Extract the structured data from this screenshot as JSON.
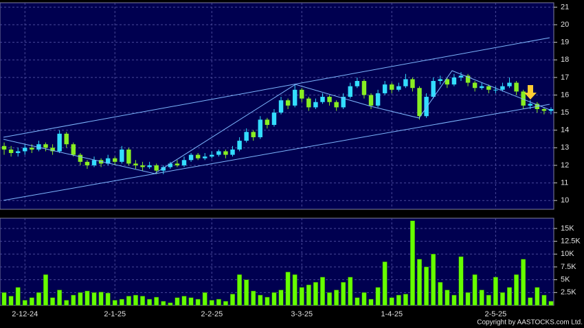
{
  "chart_data": [
    {
      "type": "candlestick",
      "categories": [
        null,
        null,
        null,
        "2-12-24",
        null,
        null,
        null,
        null,
        null,
        null,
        null,
        null,
        null,
        null,
        null,
        null,
        "2-1-25",
        null,
        null,
        null,
        null,
        null,
        null,
        null,
        null,
        null,
        null,
        null,
        null,
        null,
        "2-2-25",
        null,
        null,
        null,
        null,
        null,
        null,
        null,
        null,
        null,
        null,
        null,
        null,
        "3-3-25",
        null,
        null,
        null,
        null,
        null,
        null,
        null,
        null,
        null,
        null,
        null,
        null,
        "1-4-25",
        null,
        null,
        null,
        null,
        null,
        null,
        null,
        null,
        null,
        null,
        null,
        null,
        null,
        null,
        "2-5-25",
        null,
        null,
        null,
        null,
        null,
        null,
        null,
        null
      ],
      "open": [
        13.1,
        12.9,
        12.7,
        12.8,
        13.0,
        12.9,
        13.2,
        13.0,
        12.8,
        13.8,
        13.2,
        12.6,
        12.2,
        12.0,
        12.3,
        12.1,
        12.4,
        12.2,
        12.9,
        12.1,
        12.0,
        11.9,
        12.0,
        11.7,
        11.9,
        12.1,
        12.0,
        12.3,
        12.6,
        12.4,
        12.5,
        12.6,
        12.8,
        12.6,
        12.9,
        13.4,
        13.9,
        13.6,
        14.6,
        14.3,
        15.0,
        15.7,
        15.4,
        16.3,
        15.8,
        15.3,
        15.6,
        15.9,
        15.6,
        15.3,
        15.9,
        16.5,
        16.8,
        16.0,
        15.4,
        16.1,
        16.6,
        16.3,
        16.5,
        16.9,
        16.4,
        14.8,
        15.9,
        16.8,
        16.9,
        16.6,
        17.0,
        17.1,
        16.7,
        16.4,
        16.5,
        16.3,
        16.3,
        16.5,
        16.7,
        16.2,
        15.4,
        15.5,
        15.2,
        15.1
      ],
      "high": [
        13.3,
        13.1,
        13.0,
        13.2,
        13.2,
        13.4,
        13.3,
        13.2,
        14.0,
        13.9,
        13.3,
        12.7,
        12.3,
        12.5,
        12.4,
        12.6,
        12.5,
        13.1,
        13.0,
        12.3,
        12.2,
        12.2,
        12.1,
        12.0,
        12.2,
        12.3,
        12.5,
        12.7,
        12.7,
        12.7,
        12.8,
        12.9,
        12.9,
        13.1,
        13.6,
        14.1,
        14.0,
        14.8,
        14.7,
        15.2,
        15.9,
        15.8,
        16.6,
        16.4,
        15.9,
        15.8,
        16.1,
        16.0,
        15.7,
        16.1,
        16.7,
        17.0,
        16.9,
        16.1,
        16.3,
        16.8,
        16.7,
        16.7,
        17.2,
        17.0,
        16.5,
        16.1,
        17.0,
        17.1,
        17.0,
        17.2,
        17.3,
        17.2,
        16.8,
        16.7,
        16.6,
        16.5,
        16.7,
        17.0,
        16.8,
        16.3,
        15.7,
        15.6,
        15.3,
        15.3
      ],
      "low": [
        12.6,
        12.5,
        12.5,
        12.6,
        12.7,
        12.8,
        12.8,
        12.6,
        12.7,
        13.0,
        12.5,
        12.0,
        11.8,
        11.9,
        11.9,
        12.0,
        12.0,
        12.1,
        12.0,
        11.8,
        11.7,
        11.8,
        11.5,
        11.5,
        11.8,
        11.9,
        11.9,
        12.2,
        12.3,
        12.3,
        12.4,
        12.5,
        12.4,
        12.5,
        12.8,
        13.3,
        13.4,
        13.5,
        14.1,
        14.2,
        14.9,
        15.2,
        15.3,
        15.6,
        15.1,
        15.2,
        15.5,
        15.4,
        15.1,
        15.2,
        15.8,
        16.4,
        15.8,
        15.2,
        15.3,
        16.0,
        16.1,
        16.2,
        16.4,
        16.2,
        14.6,
        14.7,
        15.8,
        16.6,
        16.4,
        16.5,
        16.8,
        16.5,
        16.2,
        16.3,
        16.1,
        16.1,
        16.2,
        16.4,
        16.0,
        15.2,
        15.2,
        15.0,
        14.9,
        14.9
      ],
      "close": [
        12.9,
        12.7,
        12.8,
        13.0,
        12.9,
        13.2,
        13.0,
        12.8,
        13.8,
        13.2,
        12.6,
        12.2,
        12.0,
        12.3,
        12.1,
        12.4,
        12.2,
        12.9,
        12.1,
        12.0,
        11.9,
        12.0,
        11.7,
        11.9,
        12.1,
        12.0,
        12.3,
        12.6,
        12.4,
        12.5,
        12.6,
        12.8,
        12.6,
        12.9,
        13.4,
        13.9,
        13.6,
        14.6,
        14.3,
        15.0,
        15.7,
        15.4,
        16.3,
        15.8,
        15.3,
        15.6,
        15.9,
        15.6,
        15.3,
        15.9,
        16.5,
        16.8,
        16.0,
        15.4,
        16.1,
        16.6,
        16.3,
        16.5,
        16.9,
        16.4,
        14.8,
        15.9,
        16.8,
        16.9,
        16.6,
        17.0,
        17.1,
        16.7,
        16.4,
        16.5,
        16.3,
        16.3,
        16.5,
        16.7,
        16.2,
        15.4,
        15.5,
        15.2,
        15.1,
        15.2
      ],
      "up_color": "#33ddff",
      "down_color": "#88ee22",
      "ylim": [
        9.5,
        21.25
      ],
      "yticks": [
        10,
        11,
        12,
        13,
        14,
        15,
        16,
        17,
        18,
        19,
        20,
        21
      ],
      "grid": true
    },
    {
      "type": "bar",
      "values": [
        2500,
        1800,
        3500,
        1000,
        1500,
        2500,
        6000,
        1500,
        3000,
        1000,
        2000,
        2500,
        2800,
        2500,
        2600,
        2400,
        1000,
        1200,
        1800,
        2000,
        1800,
        1200,
        1600,
        800,
        500,
        1500,
        1800,
        1500,
        1200,
        2500,
        1000,
        1200,
        800,
        2200,
        6000,
        5000,
        2800,
        2000,
        1600,
        2500,
        3000,
        6500,
        6000,
        3500,
        4000,
        4500,
        5500,
        2500,
        3000,
        4500,
        5500,
        1500,
        2500,
        1200,
        3500,
        8500,
        1500,
        2000,
        2200,
        16500,
        9000,
        7500,
        10000,
        4500,
        3000,
        2000,
        9500,
        2500,
        6000,
        3000,
        2000,
        5500,
        2500,
        3500,
        6000,
        9000,
        1500,
        3500,
        2000,
        800
      ],
      "color": "#66ff00",
      "ylim": [
        0,
        17000
      ],
      "yticks": [
        {
          "value": 2500,
          "label": "2.5K"
        },
        {
          "value": 5000,
          "label": "5K"
        },
        {
          "value": 7500,
          "label": "7.5K"
        },
        {
          "value": 10000,
          "label": "10K"
        },
        {
          "value": 12500,
          "label": "12.5K"
        },
        {
          "value": 15000,
          "label": "15K"
        }
      ],
      "grid": true
    }
  ],
  "copyright": "Copyright by AASTOCKS.com Ltd."
}
